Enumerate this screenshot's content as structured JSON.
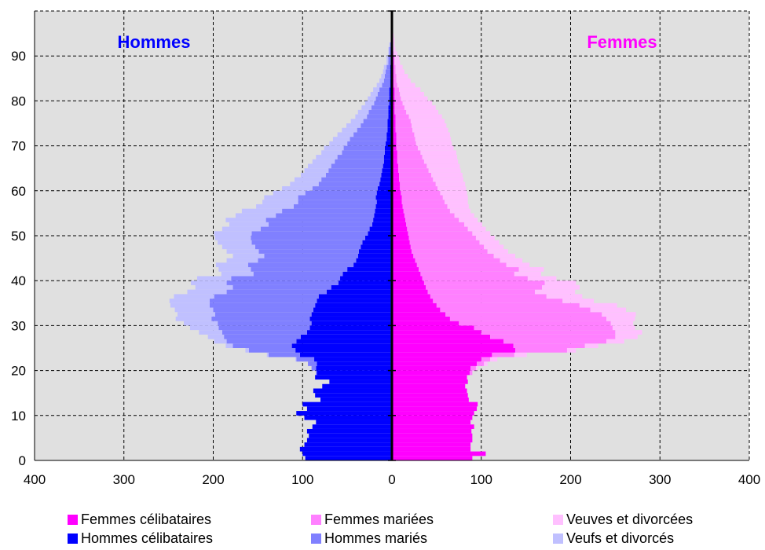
{
  "chart_data": {
    "type": "population-pyramid",
    "left_label": "Hommes",
    "right_label": "Femmes",
    "x_ticks": [
      "400",
      "300",
      "200",
      "100",
      "0",
      "100",
      "200",
      "300",
      "400"
    ],
    "y_ticks": [
      "0",
      "10",
      "20",
      "30",
      "40",
      "50",
      "60",
      "70",
      "80",
      "90"
    ],
    "xlim": [
      -400,
      400
    ],
    "ylim": [
      0,
      100
    ],
    "grid": true,
    "colors": {
      "plot_bg": "#e0e0e0",
      "femmes_celibataires": "#ff00ff",
      "femmes_mariees": "#ff80ff",
      "veuves_divorcees": "#ffc0ff",
      "hommes_celibataires": "#0000ff",
      "hommes_maries": "#8080ff",
      "veufs_divorces": "#c0c0ff",
      "title_hommes": "#0000ff",
      "title_femmes": "#ff00ff"
    },
    "legend": [
      {
        "label": "Femmes célibataires",
        "color": "#ff00ff"
      },
      {
        "label": "Femmes mariées",
        "color": "#ff80ff"
      },
      {
        "label": "Veuves et divorcées",
        "color": "#ffc0ff"
      },
      {
        "label": "Hommes célibataires",
        "color": "#0000ff"
      },
      {
        "label": "Hommes mariés",
        "color": "#8080ff"
      },
      {
        "label": "Veufs et divorcés",
        "color": "#c0c0ff"
      }
    ],
    "ages": [
      0,
      1,
      2,
      3,
      4,
      5,
      6,
      7,
      8,
      9,
      10,
      11,
      12,
      13,
      14,
      15,
      16,
      17,
      18,
      19,
      20,
      21,
      22,
      23,
      24,
      25,
      26,
      27,
      28,
      29,
      30,
      31,
      32,
      33,
      34,
      35,
      36,
      37,
      38,
      39,
      40,
      41,
      42,
      43,
      44,
      45,
      46,
      47,
      48,
      49,
      50,
      51,
      52,
      53,
      54,
      55,
      56,
      57,
      58,
      59,
      60,
      61,
      62,
      63,
      64,
      65,
      66,
      67,
      68,
      69,
      70,
      71,
      72,
      73,
      74,
      75,
      76,
      77,
      78,
      79,
      80,
      81,
      82,
      83,
      84,
      85,
      86,
      87,
      88,
      89,
      90,
      91,
      92,
      93,
      94,
      95,
      96,
      97,
      98,
      99
    ],
    "hommes": {
      "celibataires": [
        97,
        100,
        103,
        98,
        95,
        93,
        95,
        89,
        85,
        98,
        107,
        95,
        100,
        80,
        86,
        88,
        78,
        70,
        86,
        84,
        85,
        84,
        87,
        103,
        108,
        112,
        107,
        102,
        95,
        92,
        90,
        92,
        90,
        88,
        86,
        84,
        82,
        73,
        68,
        60,
        58,
        55,
        50,
        43,
        40,
        38,
        37,
        35,
        33,
        30,
        27,
        25,
        22,
        21,
        20,
        19,
        18,
        17,
        18,
        17,
        16,
        14,
        13,
        12,
        11,
        10,
        9,
        9,
        8,
        8,
        7,
        6,
        6,
        5,
        5,
        5,
        4,
        4,
        4,
        3,
        3,
        3,
        3,
        2,
        2,
        2,
        2,
        2,
        1,
        1,
        1,
        1,
        1,
        0,
        0,
        0,
        0,
        0,
        0,
        0
      ],
      "maries": [
        0,
        0,
        0,
        0,
        0,
        0,
        0,
        0,
        0,
        0,
        0,
        0,
        0,
        0,
        0,
        0,
        0,
        0,
        0,
        1,
        5,
        10,
        20,
        35,
        52,
        66,
        78,
        86,
        95,
        102,
        105,
        110,
        108,
        112,
        118,
        120,
        117,
        112,
        110,
        125,
        122,
        100,
        108,
        118,
        110,
        105,
        112,
        118,
        124,
        128,
        130,
        122,
        116,
        120,
        110,
        104,
        92,
        88,
        87,
        80,
        73,
        68,
        66,
        62,
        60,
        58,
        55,
        52,
        48,
        46,
        43,
        41,
        37,
        34,
        30,
        27,
        24,
        22,
        19,
        17,
        15,
        13,
        11,
        9,
        7,
        6,
        5,
        4,
        3,
        3,
        2,
        2,
        1,
        1,
        0,
        0,
        0,
        0,
        0,
        0
      ],
      "veufs_divorces": [
        0,
        0,
        0,
        0,
        0,
        0,
        0,
        0,
        0,
        0,
        0,
        0,
        0,
        0,
        0,
        0,
        0,
        0,
        0,
        0,
        0,
        0,
        1,
        2,
        4,
        8,
        14,
        18,
        26,
        32,
        38,
        40,
        42,
        43,
        44,
        45,
        45,
        44,
        42,
        40,
        38,
        36,
        36,
        36,
        35,
        35,
        36,
        37,
        38,
        40,
        42,
        43,
        44,
        45,
        45,
        45,
        42,
        40,
        38,
        36,
        34,
        32,
        30,
        28,
        27,
        26,
        25,
        24,
        23,
        22,
        20,
        19,
        18,
        17,
        16,
        14,
        13,
        12,
        11,
        10,
        9,
        8,
        7,
        6,
        5,
        4,
        3,
        3,
        2,
        2,
        1,
        1,
        1,
        0,
        0,
        0,
        0,
        0,
        0,
        0
      ]
    },
    "femmes": {
      "celibataires": [
        90,
        105,
        88,
        88,
        90,
        90,
        89,
        92,
        88,
        90,
        92,
        95,
        96,
        86,
        85,
        84,
        82,
        85,
        84,
        87,
        88,
        95,
        100,
        112,
        138,
        136,
        125,
        110,
        100,
        92,
        75,
        65,
        60,
        54,
        50,
        46,
        43,
        40,
        38,
        36,
        34,
        32,
        30,
        28,
        26,
        24,
        22,
        21,
        20,
        19,
        18,
        17,
        16,
        15,
        14,
        13,
        12,
        11,
        11,
        10,
        9,
        9,
        8,
        8,
        7,
        7,
        6,
        6,
        6,
        5,
        5,
        5,
        5,
        4,
        4,
        4,
        4,
        3,
        3,
        3,
        3,
        3,
        3,
        2,
        2,
        2,
        2,
        2,
        2,
        2,
        1,
        1,
        1,
        1,
        1,
        0,
        0,
        0,
        0,
        0
      ],
      "maries": [
        0,
        0,
        0,
        0,
        0,
        0,
        0,
        0,
        0,
        0,
        0,
        0,
        0,
        0,
        0,
        0,
        0,
        0,
        0,
        3,
        6,
        8,
        10,
        25,
        58,
        80,
        115,
        140,
        150,
        155,
        170,
        175,
        175,
        168,
        160,
        145,
        130,
        120,
        130,
        135,
        118,
        105,
        112,
        100,
        95,
        90,
        85,
        82,
        78,
        75,
        72,
        68,
        65,
        60,
        56,
        52,
        50,
        48,
        46,
        44,
        42,
        40,
        38,
        36,
        34,
        32,
        30,
        28,
        26,
        24,
        22,
        21,
        20,
        19,
        18,
        17,
        15,
        13,
        11,
        9,
        7,
        6,
        5,
        4,
        3,
        3,
        2,
        2,
        1,
        1,
        1,
        0,
        0,
        0,
        0,
        0,
        0,
        0,
        0,
        0
      ],
      "veuves_divorcees": [
        0,
        0,
        0,
        0,
        0,
        0,
        0,
        0,
        0,
        0,
        0,
        0,
        0,
        0,
        0,
        0,
        0,
        0,
        0,
        0,
        2,
        4,
        8,
        14,
        10,
        15,
        20,
        25,
        30,
        25,
        25,
        32,
        38,
        40,
        42,
        35,
        40,
        45,
        42,
        35,
        32,
        30,
        28,
        26,
        25,
        24,
        23,
        22,
        22,
        21,
        20,
        20,
        20,
        21,
        22,
        23,
        24,
        26,
        28,
        30,
        32,
        33,
        34,
        35,
        36,
        37,
        38,
        39,
        40,
        40,
        40,
        40,
        40,
        40,
        39,
        38,
        37,
        36,
        35,
        33,
        30,
        27,
        24,
        20,
        16,
        13,
        10,
        8,
        6,
        5,
        4,
        3,
        2,
        2,
        1,
        1,
        1,
        0,
        0,
        0
      ]
    }
  }
}
